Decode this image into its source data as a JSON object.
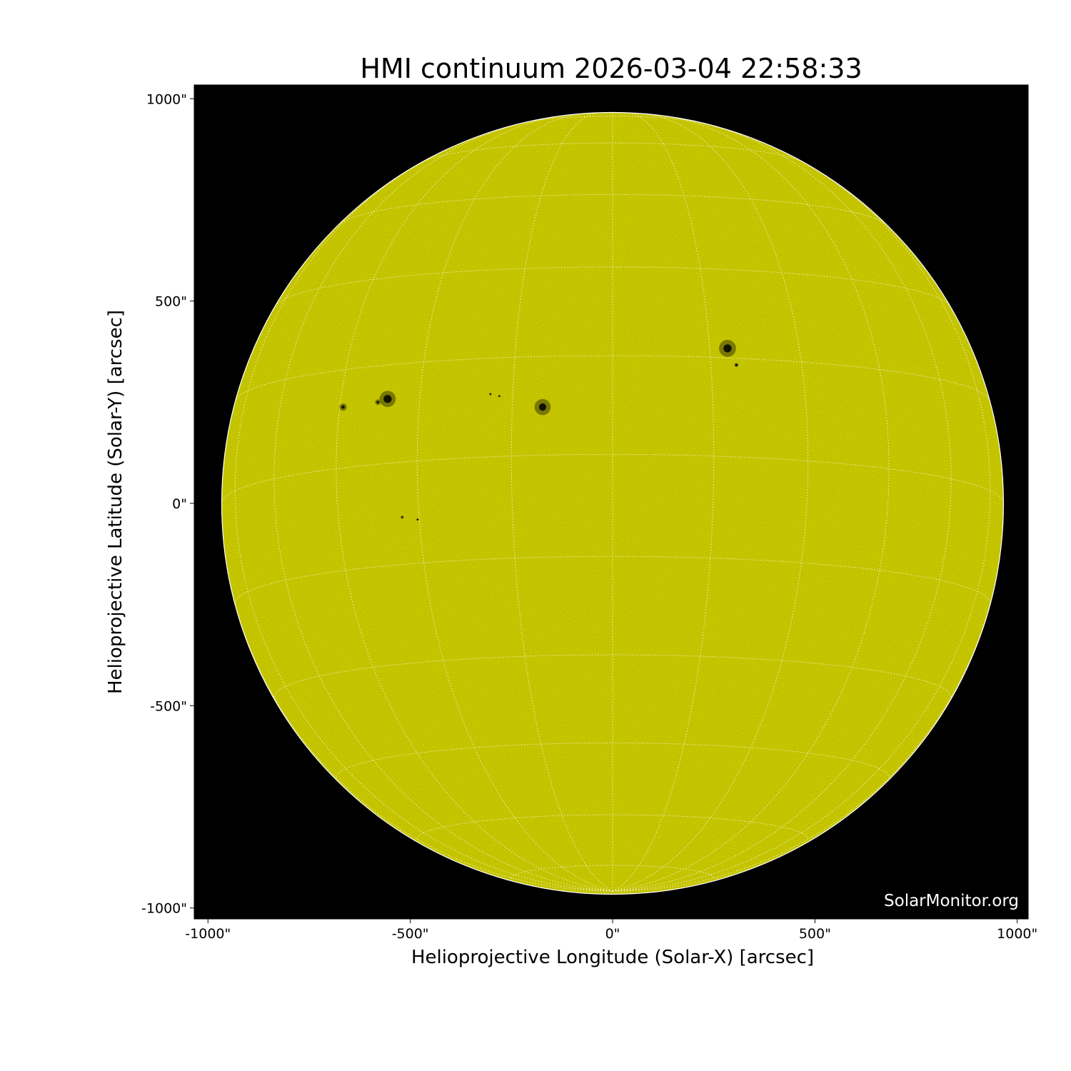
{
  "chart_data": {
    "type": "image",
    "title": "HMI continuum 2026-03-04 22:58:33",
    "xlabel": "Helioprojective Longitude (Solar-X) [arcsec]",
    "ylabel": "Helioprojective Latitude (Solar-Y) [arcsec]",
    "xlim": [
      -1034,
      1027
    ],
    "ylim": [
      -1027,
      1034
    ],
    "xticks": [
      -1000,
      -500,
      0,
      500,
      1000
    ],
    "xtick_labels": [
      "-1000\"",
      "-500\"",
      "0\"",
      "500\"",
      "1000\""
    ],
    "yticks": [
      1000,
      500,
      0,
      -500,
      -1000
    ],
    "ytick_labels": [
      "1000\"",
      "500\"",
      "0\"",
      "-500\"",
      "-1000\""
    ],
    "solar_radius_arcsec": 966,
    "grid": "heliographic, 15 degree spacing, dotted white",
    "colors": {
      "disk": "#cccc00",
      "background": "#000000",
      "grid": "#ffffff",
      "spot_penumbra": "#6b6b00",
      "spot_umbra": "#111100"
    },
    "sunspots": [
      {
        "x": -556,
        "y": 258,
        "r": 20,
        "umbra": 10
      },
      {
        "x": -580,
        "y": 250,
        "r": 7,
        "umbra": 3
      },
      {
        "x": -666,
        "y": 238,
        "r": 9,
        "umbra": 4
      },
      {
        "x": -173,
        "y": 238,
        "r": 20,
        "umbra": 9
      },
      {
        "x": 284,
        "y": 383,
        "r": 21,
        "umbra": 10
      },
      {
        "x": 306,
        "y": 342,
        "r": 5,
        "umbra": 3
      },
      {
        "x": -520,
        "y": -34,
        "r": 4,
        "umbra": 2
      },
      {
        "x": -482,
        "y": -40,
        "r": 3,
        "umbra": 2
      },
      {
        "x": -302,
        "y": 270,
        "r": 3,
        "umbra": 2
      },
      {
        "x": -280,
        "y": 265,
        "r": 3,
        "umbra": 2
      }
    ],
    "watermark": "SolarMonitor.org"
  }
}
